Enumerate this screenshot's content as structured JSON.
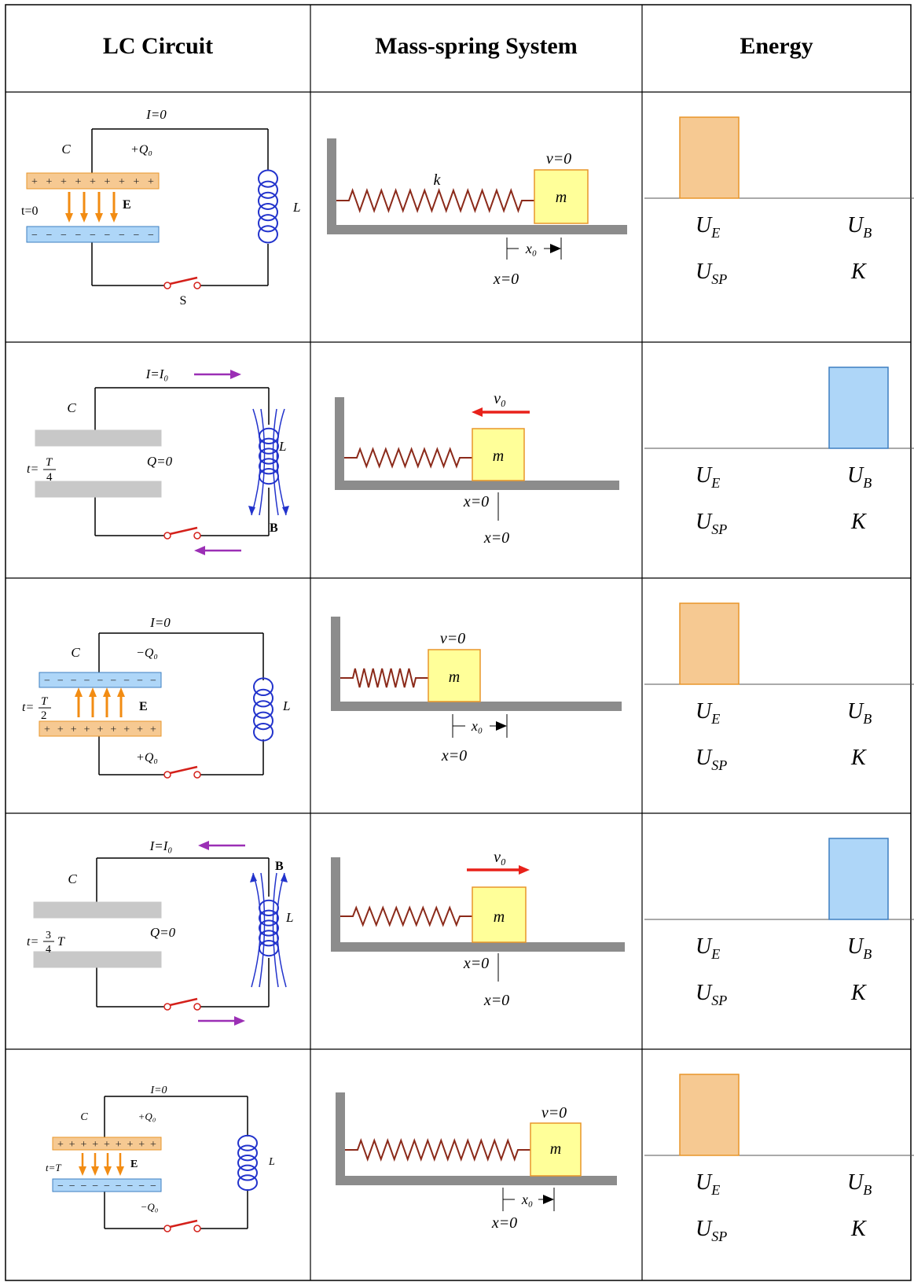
{
  "headers": {
    "lc": "LC Circuit",
    "ms": "Mass-spring System",
    "energy": "Energy"
  },
  "rows": [
    {
      "lc": {
        "current": "I=0",
        "cap_label": "C",
        "charge_top": "+Q₀",
        "charge_bottom": "",
        "time": "t=0",
        "field": "E⃗",
        "inductor_label": "L",
        "switch_label": "S",
        "state": "top-positive"
      },
      "ms": {
        "k": "k",
        "mass": "m",
        "velocity": "v=0",
        "disp": "x₀",
        "eq": "x=0",
        "state": "stretched"
      },
      "energy": {
        "UE": 1,
        "UB": 0,
        "labels": [
          "U_E",
          "U_B",
          "U_SP",
          "K"
        ]
      }
    },
    {
      "lc": {
        "current": "I=I₀",
        "cap_label": "C",
        "charge_mid": "Q=0",
        "time": "t=T/4",
        "inductor_label": "L",
        "field": "B⃗",
        "state": "flowing-cw"
      },
      "ms": {
        "mass": "m",
        "velocity": "v₀",
        "eq_a": "x=0",
        "eq_b": "x=0",
        "state": "equilibrium-left"
      },
      "energy": {
        "UE": 0,
        "UB": 1
      }
    },
    {
      "lc": {
        "current": "I=0",
        "cap_label": "C",
        "charge_top": "−Q₀",
        "charge_bottom": "+Q₀",
        "time": "t=T/2",
        "field": "E⃗",
        "inductor_label": "L",
        "state": "bottom-positive"
      },
      "ms": {
        "mass": "m",
        "velocity": "v=0",
        "disp": "x₀",
        "eq": "x=0",
        "state": "compressed"
      },
      "energy": {
        "UE": 1,
        "UB": 0
      }
    },
    {
      "lc": {
        "current": "I=I₀",
        "cap_label": "C",
        "charge_mid": "Q=0",
        "time": "t=¾ T",
        "inductor_label": "L",
        "field": "B⃗",
        "state": "flowing-ccw"
      },
      "ms": {
        "mass": "m",
        "velocity": "v₀",
        "eq_a": "x=0",
        "eq_b": "x=0",
        "state": "equilibrium-right"
      },
      "energy": {
        "UE": 0,
        "UB": 1
      }
    },
    {
      "lc": {
        "current": "I=0",
        "cap_label": "C",
        "charge_top": "+Q₀",
        "charge_bottom": "−Q₀",
        "time": "t=T",
        "field": "E⃗",
        "inductor_label": "L",
        "state": "top-positive"
      },
      "ms": {
        "mass": "m",
        "velocity": "v=0",
        "disp": "x₀",
        "eq": "x=0",
        "state": "stretched"
      },
      "energy": {
        "UE": 1,
        "UB": 0
      }
    }
  ],
  "energy_labels": {
    "ue": "U",
    "ue_sub": "E",
    "ub": "U",
    "ub_sub": "B",
    "usp": "U",
    "usp_sub": "SP",
    "k": "K"
  },
  "colors": {
    "orange_fill": "#f6c992",
    "orange_edge": "#e8962a",
    "blue_fill": "#aed6f8",
    "blue_edge": "#3d7fc1",
    "spring": "#8b2a1a",
    "wall": "#8c8c8c",
    "mass": "#ffff99",
    "arrow_red": "#e8211a",
    "arrow_purple": "#9b2fb5",
    "switch": "#d4201a",
    "coil": "#2233cc",
    "plate_gray": "#c8c8c8"
  }
}
